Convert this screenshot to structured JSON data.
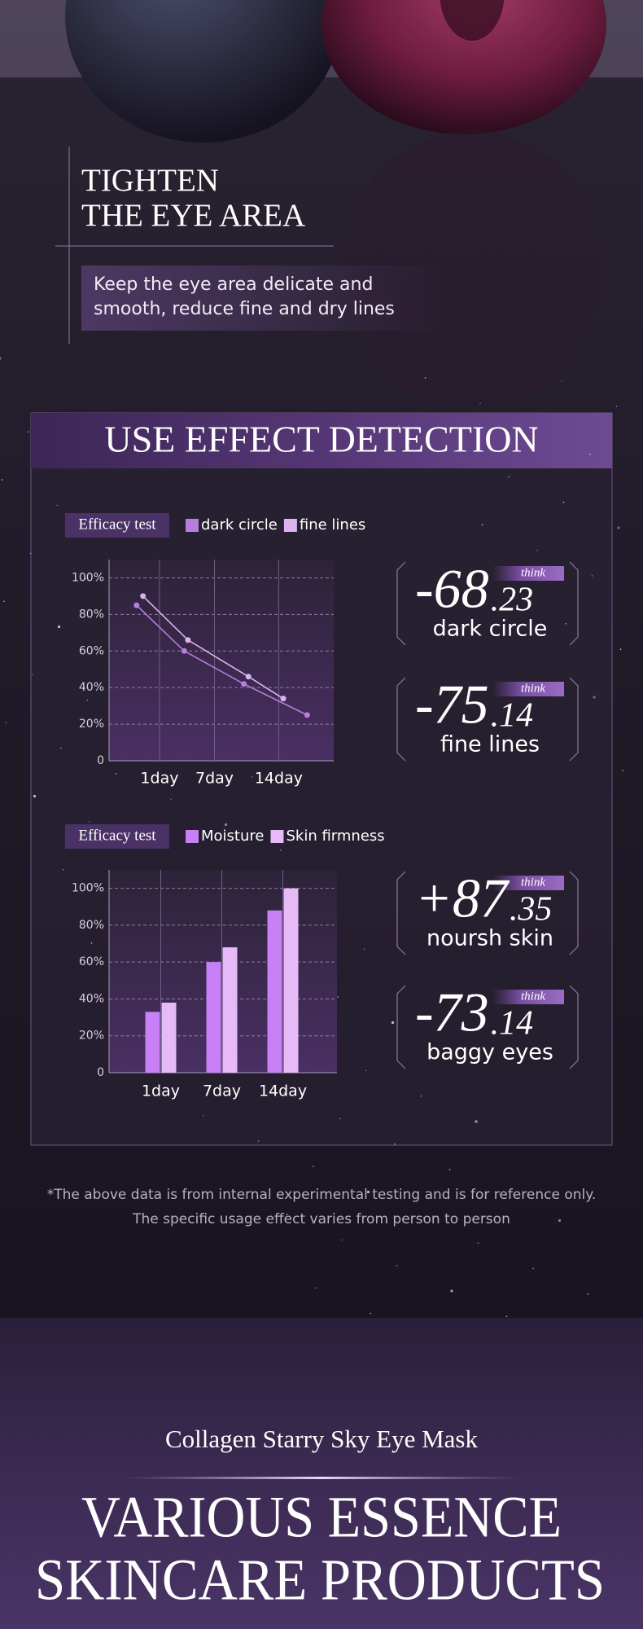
{
  "hero": {
    "title": [
      "TIGHTEN",
      "THE EYE AREA"
    ],
    "subtitle": [
      "Keep the eye area delicate and",
      "smooth, reduce fine and dry lines"
    ]
  },
  "panel": {
    "title": "USE EFFECT DETECTION"
  },
  "chart_data": [
    {
      "type": "line",
      "badge": "Efficacy test",
      "xlim": [
        -4.5,
        20
      ],
      "xticks": [
        {
          "value": 1,
          "label": "1day"
        },
        {
          "value": 7,
          "label": "7day"
        },
        {
          "value": 14,
          "label": "14day"
        }
      ],
      "ylim": [
        0,
        110
      ],
      "yticks": [
        0,
        {
          "value": 20,
          "label": "20%"
        },
        {
          "value": 40,
          "label": "40%"
        },
        {
          "value": 60,
          "label": "60%"
        },
        {
          "value": 80,
          "label": "80%"
        },
        {
          "value": 100,
          "label": "100%"
        }
      ],
      "grid": true,
      "series": [
        {
          "name": "dark circle",
          "color": "#b77ee0",
          "x": [
            -1.5,
            3.7,
            10.2,
            17.1
          ],
          "values": [
            85,
            60,
            42,
            25
          ]
        },
        {
          "name": "fine lines",
          "color": "#dcb3ef",
          "x": [
            -0.8,
            4.1,
            10.7,
            14.5
          ],
          "values": [
            90,
            66,
            46,
            34
          ]
        }
      ]
    },
    {
      "type": "bar",
      "badge": "Efficacy test",
      "categories": [
        "1day",
        "7day",
        "14day"
      ],
      "ylim": [
        0,
        110
      ],
      "yticks": [
        0,
        {
          "value": 20,
          "label": "20%"
        },
        {
          "value": 40,
          "label": "40%"
        },
        {
          "value": 60,
          "label": "60%"
        },
        {
          "value": 80,
          "label": "80%"
        },
        {
          "value": 100,
          "label": "100%"
        }
      ],
      "grid": true,
      "series": [
        {
          "name": "Moisture",
          "color": "#c780f5",
          "values": [
            33,
            60,
            88
          ]
        },
        {
          "name": "Skin firmness",
          "color": "#e6b9f7",
          "values": [
            38,
            68,
            100
          ]
        }
      ]
    }
  ],
  "stats": [
    {
      "main": "-68",
      "fraction": ".23",
      "tag": "think",
      "label": "dark circle"
    },
    {
      "main": "-75",
      "fraction": ".14",
      "tag": "think",
      "label": "fine lines"
    },
    {
      "main": "+87",
      "fraction": ".35",
      "tag": "think",
      "label": "noursh skin"
    },
    {
      "main": "-73",
      "fraction": ".14",
      "tag": "think",
      "label": "baggy eyes"
    }
  ],
  "footnote": [
    "*The above data is from internal experimental testing and is for reference only.",
    "The specific usage effect varies from person to person"
  ],
  "footer": {
    "subtitle": "Collagen Starry Sky Eye Mask",
    "title": [
      "VARIOUS ESSENCE",
      "SKINCARE PRODUCTS"
    ]
  }
}
